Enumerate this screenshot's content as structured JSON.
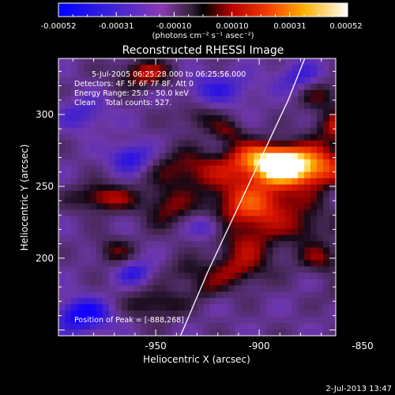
{
  "colorbar": {
    "tick_labels": [
      "-0.00052",
      "-0.00031",
      "-0.00010",
      "0.00010",
      "0.00031",
      "0.00052"
    ],
    "unit_label": "(photons cm⁻² s⁻¹ asec⁻²)"
  },
  "chart_data": {
    "type": "heatmap",
    "title": "Reconstructed RHESSI Image",
    "xlabel": "Heliocentric X (arcsec)",
    "ylabel": "Heliocentric Y (arcsec)",
    "xlim": [
      -997,
      -863
    ],
    "ylim": [
      146,
      339
    ],
    "x_ticks": [
      -950,
      -900,
      -850
    ],
    "y_ticks": [
      200,
      250,
      300
    ],
    "color_range": [
      -0.00052,
      0.00052
    ],
    "peak": [
      -888,
      268
    ],
    "info_lines": [
      "5-Jul-2005 06:25:28.000 to 06:25:56.000",
      "Detectors: 4F 5F 6F 7F 8F, Att 0",
      "Energy Range: 25.0 - 50.0 keV",
      "Clean    Total counts: 527."
    ],
    "peak_label": "Position of Peak = [-888,268]",
    "blobs": [
      {
        "x": -889,
        "y": 266,
        "sx": 8,
        "sy": 8,
        "amp": 1.0
      },
      {
        "x": -880,
        "y": 262,
        "sx": 11,
        "sy": 9,
        "amp": 0.55
      },
      {
        "x": -902,
        "y": 270,
        "sx": 10,
        "sy": 8,
        "amp": 0.55
      },
      {
        "x": -904,
        "y": 255,
        "sx": 14,
        "sy": 13,
        "amp": 0.5
      },
      {
        "x": -870,
        "y": 265,
        "sx": 10,
        "sy": 12,
        "amp": 0.5
      },
      {
        "x": -900,
        "y": 235,
        "sx": 18,
        "sy": 10,
        "amp": 0.55
      },
      {
        "x": -905,
        "y": 210,
        "sx": 12,
        "sy": 14,
        "amp": 0.45
      },
      {
        "x": -912,
        "y": 190,
        "sx": 9,
        "sy": 8,
        "amp": 0.35
      },
      {
        "x": -935,
        "y": 262,
        "sx": 12,
        "sy": 10,
        "amp": 0.45
      },
      {
        "x": -945,
        "y": 235,
        "sx": 8,
        "sy": 10,
        "amp": 0.4
      },
      {
        "x": -975,
        "y": 242,
        "sx": 11,
        "sy": 7,
        "amp": 0.55
      },
      {
        "x": -970,
        "y": 205,
        "sx": 7,
        "sy": 7,
        "amp": 0.35
      },
      {
        "x": -950,
        "y": 168,
        "sx": 10,
        "sy": 8,
        "amp": 0.4
      },
      {
        "x": -935,
        "y": 190,
        "sx": 7,
        "sy": 7,
        "amp": 0.3
      },
      {
        "x": -955,
        "y": 328,
        "sx": 10,
        "sy": 7,
        "amp": 0.55
      },
      {
        "x": -930,
        "y": 298,
        "sx": 8,
        "sy": 7,
        "amp": 0.3
      },
      {
        "x": -915,
        "y": 288,
        "sx": 6,
        "sy": 6,
        "amp": 0.35
      },
      {
        "x": -860,
        "y": 292,
        "sx": 9,
        "sy": 8,
        "amp": 0.55
      },
      {
        "x": -872,
        "y": 315,
        "sx": 8,
        "sy": 8,
        "amp": 0.4
      },
      {
        "x": -845,
        "y": 310,
        "sx": 9,
        "sy": 7,
        "amp": 0.45
      },
      {
        "x": -843,
        "y": 260,
        "sx": 9,
        "sy": 9,
        "amp": 0.6
      },
      {
        "x": -835,
        "y": 258,
        "sx": 6,
        "sy": 8,
        "amp": 0.45
      },
      {
        "x": -850,
        "y": 230,
        "sx": 8,
        "sy": 10,
        "amp": 0.45
      },
      {
        "x": -830,
        "y": 215,
        "sx": 6,
        "sy": 9,
        "amp": 0.4
      },
      {
        "x": -870,
        "y": 200,
        "sx": 8,
        "sy": 8,
        "amp": 0.4
      },
      {
        "x": -878,
        "y": 220,
        "sx": 7,
        "sy": 7,
        "amp": 0.3
      },
      {
        "x": -860,
        "y": 175,
        "sx": 6,
        "sy": 6,
        "amp": 0.25
      },
      {
        "x": -925,
        "y": 178,
        "sx": 6,
        "sy": 6,
        "amp": 0.25
      },
      {
        "x": -985,
        "y": 160,
        "sx": 9,
        "sy": 8,
        "amp": -0.75
      },
      {
        "x": -962,
        "y": 270,
        "sx": 7,
        "sy": 7,
        "amp": -0.55
      },
      {
        "x": -920,
        "y": 318,
        "sx": 12,
        "sy": 8,
        "amp": -0.4
      },
      {
        "x": -880,
        "y": 325,
        "sx": 8,
        "sy": 8,
        "amp": -0.45
      },
      {
        "x": -840,
        "y": 180,
        "sx": 10,
        "sy": 10,
        "amp": -0.6
      },
      {
        "x": -925,
        "y": 222,
        "sx": 6,
        "sy": 6,
        "amp": -0.45
      },
      {
        "x": -855,
        "y": 245,
        "sx": 6,
        "sy": 6,
        "amp": -0.4
      },
      {
        "x": -985,
        "y": 300,
        "sx": 8,
        "sy": 8,
        "amp": -0.35
      },
      {
        "x": -960,
        "y": 190,
        "sx": 6,
        "sy": 6,
        "amp": -0.45
      },
      {
        "x": -825,
        "y": 295,
        "sx": 6,
        "sy": 8,
        "amp": -0.4
      }
    ],
    "limb_curve": [
      [
        -938,
        146
      ],
      [
        -925,
        190
      ],
      [
        -912,
        230
      ],
      [
        -899,
        270
      ],
      [
        -886,
        310
      ],
      [
        -878,
        339
      ]
    ]
  },
  "footer": {
    "timestamp": "2-Jul-2013 13:47"
  }
}
